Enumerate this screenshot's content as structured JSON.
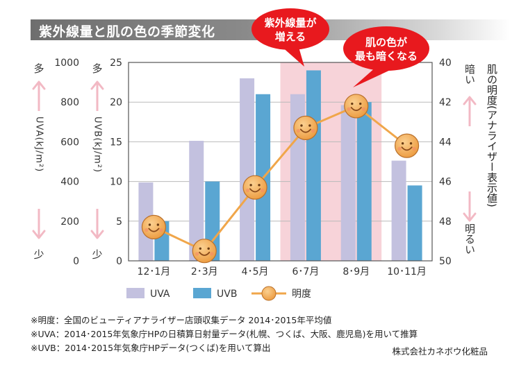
{
  "title": "紫外線量と肌の色の季節変化",
  "callouts": {
    "uv_increase": [
      "紫外線量が",
      "増える"
    ],
    "skin_darkest": [
      "肌の色が",
      "最も暗くなる"
    ]
  },
  "left_axis_labels": {
    "uva_title": "UVA(kJ/m²)",
    "uvb_title": "UVB(kJ/m²)",
    "top_word": "多",
    "bottom_word": "少"
  },
  "right_axis_labels": {
    "title": "肌の明度(アナライザー表示値)",
    "top_word": "暗い",
    "bottom_word": "明るい"
  },
  "legend": [
    "UVA",
    "UVB",
    "明度"
  ],
  "notes": [
    "※明度：全国のビューティアナライザー店頭収集データ 2014･2015年平均値",
    "※UVA：2014･2015年気象庁HPの日積算日射量データ(札幌、つくば、大阪、鹿児島)を用いて推算",
    "※UVB：2014･2015年気象庁HPデータ(つくば)を用いて算出"
  ],
  "credit": "株式会社カネボウ化粧品",
  "colors": {
    "uva": "#c3c1df",
    "uvb": "#5aa6d2",
    "line": "#f0a64a",
    "face": "#f2b25c",
    "highlight": "#f7d3d9",
    "arrow": "#f2b9c4",
    "callout": "#e8191e"
  },
  "chart_data": {
    "type": "bar+line",
    "categories": [
      "12･1月",
      "2･3月",
      "4･5月",
      "6･7月",
      "8･9月",
      "10･11月"
    ],
    "series": [
      {
        "name": "UVA",
        "axis": "left-uva",
        "values": [
          395,
          605,
          920,
          840,
          785,
          505
        ]
      },
      {
        "name": "UVB",
        "axis": "left-uvb",
        "values": [
          5,
          10,
          21,
          24,
          20,
          9.5
        ]
      },
      {
        "name": "明度",
        "axis": "right",
        "type": "line",
        "values": [
          48.3,
          49.5,
          46.3,
          43.3,
          42.2,
          44.2
        ]
      }
    ],
    "uva_axis": {
      "ylim": [
        0,
        1000
      ],
      "ticks": [
        0,
        200,
        400,
        600,
        800,
        1000
      ]
    },
    "uvb_axis": {
      "ylim": [
        0,
        25
      ],
      "ticks": [
        0,
        5,
        10,
        15,
        20,
        25
      ]
    },
    "right_axis": {
      "ylim": [
        50,
        40
      ],
      "ticks": [
        40,
        42,
        44,
        46,
        48,
        50
      ],
      "inverted": true
    },
    "highlight_categories": [
      "6･7月",
      "8･9月"
    ]
  }
}
